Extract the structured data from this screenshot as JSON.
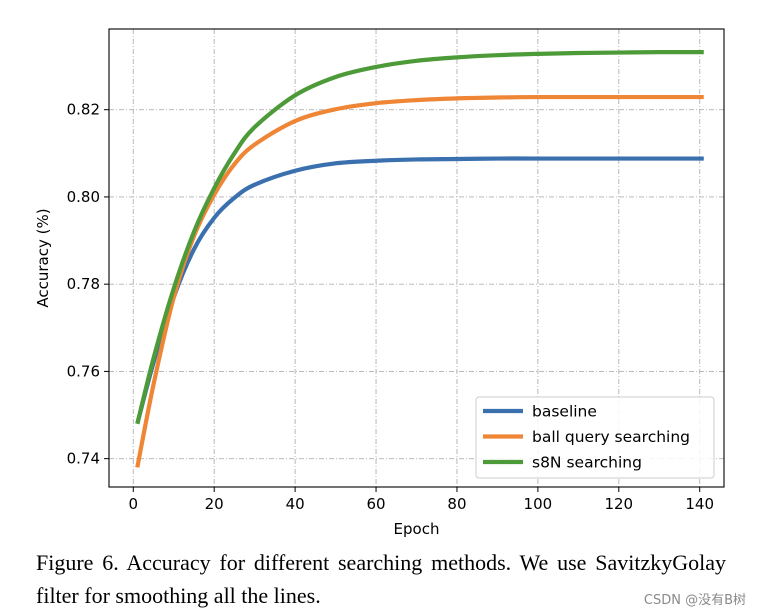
{
  "chart_data": {
    "type": "line",
    "xlabel": "Epoch",
    "ylabel": "Accuracy (%)",
    "xlim": [
      -6,
      146
    ],
    "ylim": [
      0.7335,
      0.8385
    ],
    "xticks": [
      0,
      20,
      40,
      60,
      80,
      100,
      120,
      140
    ],
    "yticks": [
      0.74,
      0.76,
      0.78,
      0.8,
      0.82
    ],
    "ytick_labels": [
      "0.74",
      "0.76",
      "0.78",
      "0.80",
      "0.82"
    ],
    "grid": true,
    "legend_position": "lower-right",
    "series": [
      {
        "name": "baseline",
        "color": "#3a70ae",
        "x": [
          1,
          5,
          10,
          15,
          20,
          25,
          30,
          40,
          50,
          60,
          70,
          80,
          90,
          100,
          110,
          120,
          130,
          141
        ],
        "y": [
          0.748,
          0.762,
          0.777,
          0.788,
          0.7952,
          0.7998,
          0.8028,
          0.806,
          0.8077,
          0.8083,
          0.8086,
          0.8087,
          0.8088,
          0.8088,
          0.8088,
          0.8088,
          0.8088,
          0.8088
        ]
      },
      {
        "name": "ball query searching",
        "color": "#ef8636",
        "x": [
          1,
          5,
          10,
          15,
          20,
          25,
          30,
          40,
          50,
          60,
          70,
          80,
          90,
          100,
          110,
          120,
          130,
          141
        ],
        "y": [
          0.738,
          0.757,
          0.777,
          0.791,
          0.8005,
          0.8075,
          0.812,
          0.8174,
          0.8201,
          0.8215,
          0.8222,
          0.8226,
          0.8228,
          0.8229,
          0.8229,
          0.8229,
          0.8229,
          0.8229
        ]
      },
      {
        "name": "s8N searching",
        "color": "#4d9a39",
        "x": [
          1,
          5,
          10,
          15,
          20,
          25,
          30,
          40,
          50,
          60,
          70,
          80,
          90,
          100,
          110,
          120,
          130,
          141
        ],
        "y": [
          0.748,
          0.763,
          0.779,
          0.792,
          0.802,
          0.81,
          0.816,
          0.8233,
          0.8275,
          0.8298,
          0.8312,
          0.832,
          0.8325,
          0.8328,
          0.833,
          0.8331,
          0.8332,
          0.8332
        ]
      }
    ]
  },
  "caption": {
    "text": "Figure 6. Accuracy for different searching methods. We use SavitzkyGolay filter for smoothing all the lines."
  },
  "watermark": {
    "text": "CSDN @没有B树"
  }
}
